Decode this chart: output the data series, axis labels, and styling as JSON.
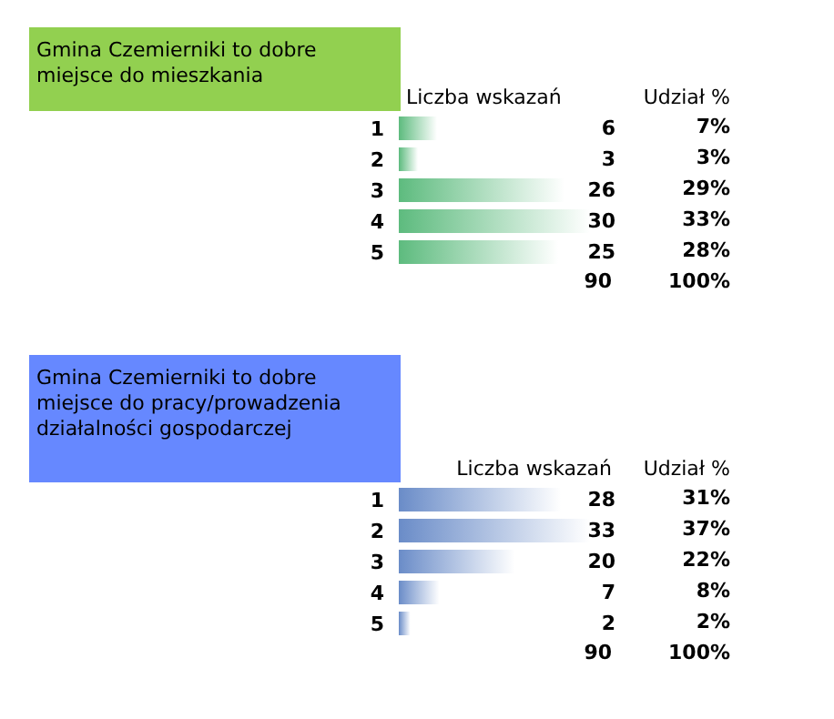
{
  "chart_data": [
    {
      "type": "bar",
      "orientation": "horizontal",
      "title": "Gmina Czemierniki to dobre miejsce do mieszkania",
      "xlabel": "Liczba wskazań",
      "categories": [
        "1",
        "2",
        "3",
        "4",
        "5"
      ],
      "values": [
        6,
        3,
        26,
        30,
        25
      ],
      "color": "#5dbb7e",
      "data_labels": true,
      "annotations": [
        "Udział %",
        "7%",
        "3%",
        "29%",
        "33%",
        "28%",
        "90",
        "100%"
      ]
    },
    {
      "type": "bar",
      "orientation": "horizontal",
      "title": "Gmina Czemierniki to dobre miejsce do pracy/prowadzenia działalności gospodarczej",
      "xlabel": "Liczba wskazań",
      "categories": [
        "1",
        "2",
        "3",
        "4",
        "5"
      ],
      "values": [
        28,
        33,
        20,
        7,
        2
      ],
      "color": "#6a8cc8",
      "data_labels": true,
      "annotations": [
        "Udział %",
        "31%",
        "37%",
        "22%",
        "8%",
        "2%",
        "90",
        "100%"
      ]
    }
  ]
}
